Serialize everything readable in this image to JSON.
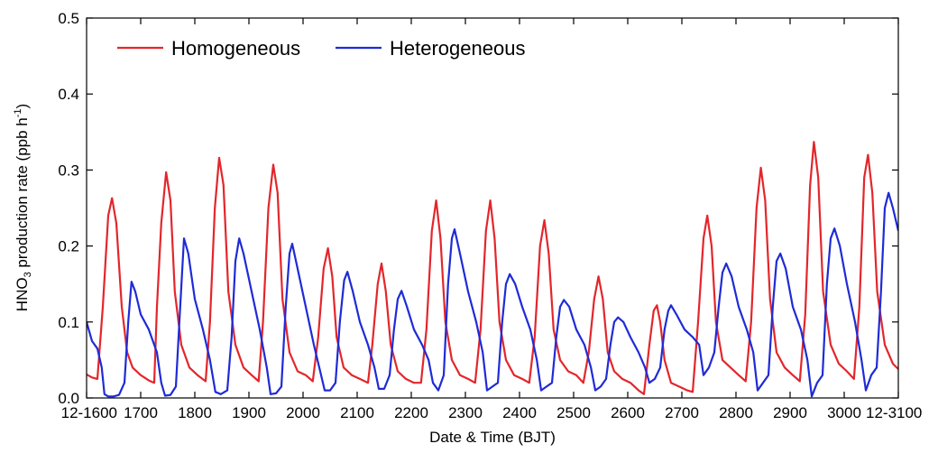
{
  "chart_data": {
    "type": "line",
    "xlabel": "Date & Time (BJT)",
    "ylabel_main": "HNO",
    "ylabel_sub": "3",
    "ylabel_rest": " production rate (ppb h",
    "ylabel_sup": "-1",
    "ylabel_end": ")",
    "ylim": [
      0.0,
      0.5
    ],
    "xlim": [
      1600,
      3100
    ],
    "x_ticks": [
      {
        "value": 1600,
        "label": "12-1600"
      },
      {
        "value": 1700,
        "label": "1700"
      },
      {
        "value": 1800,
        "label": "1800"
      },
      {
        "value": 1900,
        "label": "1900"
      },
      {
        "value": 2000,
        "label": "2000"
      },
      {
        "value": 2100,
        "label": "2100"
      },
      {
        "value": 2200,
        "label": "2200"
      },
      {
        "value": 2300,
        "label": "2300"
      },
      {
        "value": 2400,
        "label": "2400"
      },
      {
        "value": 2500,
        "label": "2500"
      },
      {
        "value": 2600,
        "label": "2600"
      },
      {
        "value": 2700,
        "label": "2700"
      },
      {
        "value": 2800,
        "label": "2800"
      },
      {
        "value": 2900,
        "label": "2900"
      },
      {
        "value": 3000,
        "label": "3000"
      },
      {
        "value": 3100,
        "label": "12-3100"
      }
    ],
    "y_ticks": [
      {
        "value": 0.0,
        "label": "0.0"
      },
      {
        "value": 0.1,
        "label": "0.1"
      },
      {
        "value": 0.2,
        "label": "0.2"
      },
      {
        "value": 0.3,
        "label": "0.3"
      },
      {
        "value": 0.4,
        "label": "0.4"
      },
      {
        "value": 0.5,
        "label": "0.5"
      }
    ],
    "legend_position": "top-left",
    "grid": false,
    "series": [
      {
        "name": "Homogeneous",
        "color": "#e3262b",
        "points": [
          [
            1600,
            0.031
          ],
          [
            1610,
            0.027
          ],
          [
            1620,
            0.025
          ],
          [
            1630,
            0.12
          ],
          [
            1640,
            0.24
          ],
          [
            1647,
            0.263
          ],
          [
            1655,
            0.23
          ],
          [
            1665,
            0.12
          ],
          [
            1675,
            0.06
          ],
          [
            1685,
            0.04
          ],
          [
            1700,
            0.03
          ],
          [
            1715,
            0.023
          ],
          [
            1725,
            0.02
          ],
          [
            1730,
            0.12
          ],
          [
            1738,
            0.23
          ],
          [
            1747,
            0.297
          ],
          [
            1755,
            0.26
          ],
          [
            1763,
            0.14
          ],
          [
            1775,
            0.07
          ],
          [
            1790,
            0.04
          ],
          [
            1805,
            0.03
          ],
          [
            1820,
            0.022
          ],
          [
            1828,
            0.1
          ],
          [
            1837,
            0.25
          ],
          [
            1845,
            0.316
          ],
          [
            1853,
            0.28
          ],
          [
            1862,
            0.14
          ],
          [
            1875,
            0.07
          ],
          [
            1890,
            0.04
          ],
          [
            1905,
            0.03
          ],
          [
            1918,
            0.022
          ],
          [
            1926,
            0.1
          ],
          [
            1936,
            0.25
          ],
          [
            1945,
            0.307
          ],
          [
            1953,
            0.27
          ],
          [
            1962,
            0.13
          ],
          [
            1975,
            0.06
          ],
          [
            1990,
            0.035
          ],
          [
            2005,
            0.03
          ],
          [
            2018,
            0.022
          ],
          [
            2028,
            0.08
          ],
          [
            2038,
            0.17
          ],
          [
            2046,
            0.197
          ],
          [
            2054,
            0.16
          ],
          [
            2062,
            0.08
          ],
          [
            2075,
            0.04
          ],
          [
            2090,
            0.03
          ],
          [
            2105,
            0.025
          ],
          [
            2120,
            0.02
          ],
          [
            2128,
            0.07
          ],
          [
            2138,
            0.15
          ],
          [
            2145,
            0.177
          ],
          [
            2153,
            0.14
          ],
          [
            2162,
            0.07
          ],
          [
            2175,
            0.035
          ],
          [
            2190,
            0.025
          ],
          [
            2205,
            0.02
          ],
          [
            2218,
            0.02
          ],
          [
            2228,
            0.09
          ],
          [
            2238,
            0.22
          ],
          [
            2246,
            0.26
          ],
          [
            2254,
            0.21
          ],
          [
            2263,
            0.1
          ],
          [
            2275,
            0.05
          ],
          [
            2290,
            0.03
          ],
          [
            2305,
            0.025
          ],
          [
            2318,
            0.02
          ],
          [
            2328,
            0.09
          ],
          [
            2338,
            0.22
          ],
          [
            2346,
            0.26
          ],
          [
            2354,
            0.21
          ],
          [
            2363,
            0.1
          ],
          [
            2375,
            0.05
          ],
          [
            2390,
            0.03
          ],
          [
            2405,
            0.025
          ],
          [
            2418,
            0.02
          ],
          [
            2428,
            0.08
          ],
          [
            2438,
            0.2
          ],
          [
            2446,
            0.234
          ],
          [
            2454,
            0.19
          ],
          [
            2463,
            0.09
          ],
          [
            2475,
            0.05
          ],
          [
            2490,
            0.035
          ],
          [
            2505,
            0.03
          ],
          [
            2518,
            0.02
          ],
          [
            2528,
            0.06
          ],
          [
            2538,
            0.13
          ],
          [
            2546,
            0.16
          ],
          [
            2554,
            0.13
          ],
          [
            2563,
            0.06
          ],
          [
            2575,
            0.035
          ],
          [
            2590,
            0.025
          ],
          [
            2605,
            0.02
          ],
          [
            2620,
            0.01
          ],
          [
            2630,
            0.005
          ],
          [
            2640,
            0.07
          ],
          [
            2648,
            0.115
          ],
          [
            2654,
            0.122
          ],
          [
            2660,
            0.1
          ],
          [
            2668,
            0.05
          ],
          [
            2680,
            0.02
          ],
          [
            2695,
            0.015
          ],
          [
            2710,
            0.01
          ],
          [
            2720,
            0.008
          ],
          [
            2730,
            0.1
          ],
          [
            2740,
            0.21
          ],
          [
            2747,
            0.24
          ],
          [
            2755,
            0.2
          ],
          [
            2763,
            0.1
          ],
          [
            2775,
            0.05
          ],
          [
            2790,
            0.04
          ],
          [
            2805,
            0.03
          ],
          [
            2818,
            0.022
          ],
          [
            2828,
            0.1
          ],
          [
            2838,
            0.25
          ],
          [
            2846,
            0.303
          ],
          [
            2854,
            0.26
          ],
          [
            2863,
            0.13
          ],
          [
            2875,
            0.06
          ],
          [
            2890,
            0.04
          ],
          [
            2905,
            0.03
          ],
          [
            2918,
            0.022
          ],
          [
            2928,
            0.11
          ],
          [
            2937,
            0.28
          ],
          [
            2944,
            0.337
          ],
          [
            2952,
            0.29
          ],
          [
            2961,
            0.14
          ],
          [
            2975,
            0.07
          ],
          [
            2990,
            0.045
          ],
          [
            3005,
            0.035
          ],
          [
            3018,
            0.025
          ],
          [
            3028,
            0.12
          ],
          [
            3037,
            0.29
          ],
          [
            3044,
            0.32
          ],
          [
            3052,
            0.27
          ],
          [
            3061,
            0.14
          ],
          [
            3075,
            0.07
          ],
          [
            3090,
            0.045
          ],
          [
            3100,
            0.038
          ]
        ]
      },
      {
        "name": "Heterogeneous",
        "color": "#1f2bd6",
        "points": [
          [
            1600,
            0.1
          ],
          [
            1610,
            0.075
          ],
          [
            1620,
            0.065
          ],
          [
            1628,
            0.04
          ],
          [
            1633,
            0.005
          ],
          [
            1640,
            0.002
          ],
          [
            1650,
            0.002
          ],
          [
            1660,
            0.004
          ],
          [
            1670,
            0.02
          ],
          [
            1677,
            0.1
          ],
          [
            1683,
            0.153
          ],
          [
            1690,
            0.14
          ],
          [
            1700,
            0.11
          ],
          [
            1715,
            0.09
          ],
          [
            1730,
            0.06
          ],
          [
            1738,
            0.02
          ],
          [
            1745,
            0.003
          ],
          [
            1755,
            0.004
          ],
          [
            1765,
            0.015
          ],
          [
            1773,
            0.12
          ],
          [
            1780,
            0.21
          ],
          [
            1788,
            0.19
          ],
          [
            1800,
            0.13
          ],
          [
            1815,
            0.09
          ],
          [
            1828,
            0.05
          ],
          [
            1838,
            0.008
          ],
          [
            1848,
            0.005
          ],
          [
            1860,
            0.01
          ],
          [
            1868,
            0.08
          ],
          [
            1875,
            0.18
          ],
          [
            1882,
            0.21
          ],
          [
            1890,
            0.19
          ],
          [
            1905,
            0.14
          ],
          [
            1920,
            0.09
          ],
          [
            1933,
            0.04
          ],
          [
            1940,
            0.005
          ],
          [
            1950,
            0.006
          ],
          [
            1960,
            0.015
          ],
          [
            1968,
            0.12
          ],
          [
            1975,
            0.19
          ],
          [
            1980,
            0.203
          ],
          [
            1990,
            0.17
          ],
          [
            2005,
            0.12
          ],
          [
            2020,
            0.07
          ],
          [
            2030,
            0.04
          ],
          [
            2040,
            0.01
          ],
          [
            2050,
            0.01
          ],
          [
            2060,
            0.02
          ],
          [
            2068,
            0.1
          ],
          [
            2076,
            0.155
          ],
          [
            2082,
            0.166
          ],
          [
            2092,
            0.14
          ],
          [
            2105,
            0.1
          ],
          [
            2120,
            0.07
          ],
          [
            2132,
            0.04
          ],
          [
            2140,
            0.012
          ],
          [
            2150,
            0.012
          ],
          [
            2160,
            0.03
          ],
          [
            2168,
            0.09
          ],
          [
            2175,
            0.13
          ],
          [
            2182,
            0.141
          ],
          [
            2192,
            0.12
          ],
          [
            2205,
            0.09
          ],
          [
            2220,
            0.07
          ],
          [
            2232,
            0.05
          ],
          [
            2240,
            0.02
          ],
          [
            2250,
            0.01
          ],
          [
            2260,
            0.03
          ],
          [
            2268,
            0.15
          ],
          [
            2275,
            0.21
          ],
          [
            2280,
            0.222
          ],
          [
            2290,
            0.19
          ],
          [
            2305,
            0.14
          ],
          [
            2320,
            0.1
          ],
          [
            2332,
            0.06
          ],
          [
            2340,
            0.01
          ],
          [
            2350,
            0.015
          ],
          [
            2360,
            0.02
          ],
          [
            2368,
            0.1
          ],
          [
            2375,
            0.15
          ],
          [
            2382,
            0.163
          ],
          [
            2392,
            0.15
          ],
          [
            2405,
            0.12
          ],
          [
            2420,
            0.09
          ],
          [
            2432,
            0.05
          ],
          [
            2440,
            0.01
          ],
          [
            2450,
            0.015
          ],
          [
            2460,
            0.02
          ],
          [
            2468,
            0.08
          ],
          [
            2475,
            0.12
          ],
          [
            2482,
            0.129
          ],
          [
            2492,
            0.12
          ],
          [
            2505,
            0.09
          ],
          [
            2520,
            0.07
          ],
          [
            2532,
            0.04
          ],
          [
            2540,
            0.01
          ],
          [
            2550,
            0.015
          ],
          [
            2560,
            0.025
          ],
          [
            2568,
            0.07
          ],
          [
            2575,
            0.1
          ],
          [
            2582,
            0.106
          ],
          [
            2592,
            0.1
          ],
          [
            2605,
            0.08
          ],
          [
            2620,
            0.06
          ],
          [
            2632,
            0.04
          ],
          [
            2640,
            0.02
          ],
          [
            2650,
            0.025
          ],
          [
            2660,
            0.04
          ],
          [
            2668,
            0.09
          ],
          [
            2675,
            0.115
          ],
          [
            2680,
            0.122
          ],
          [
            2690,
            0.11
          ],
          [
            2705,
            0.09
          ],
          [
            2720,
            0.08
          ],
          [
            2732,
            0.07
          ],
          [
            2740,
            0.03
          ],
          [
            2750,
            0.04
          ],
          [
            2760,
            0.06
          ],
          [
            2768,
            0.12
          ],
          [
            2775,
            0.165
          ],
          [
            2782,
            0.177
          ],
          [
            2792,
            0.16
          ],
          [
            2805,
            0.12
          ],
          [
            2820,
            0.09
          ],
          [
            2832,
            0.06
          ],
          [
            2840,
            0.01
          ],
          [
            2850,
            0.02
          ],
          [
            2860,
            0.03
          ],
          [
            2868,
            0.12
          ],
          [
            2875,
            0.18
          ],
          [
            2882,
            0.19
          ],
          [
            2892,
            0.17
          ],
          [
            2905,
            0.12
          ],
          [
            2920,
            0.09
          ],
          [
            2932,
            0.05
          ],
          [
            2940,
            0.002
          ],
          [
            2950,
            0.02
          ],
          [
            2960,
            0.03
          ],
          [
            2968,
            0.15
          ],
          [
            2975,
            0.21
          ],
          [
            2982,
            0.223
          ],
          [
            2992,
            0.2
          ],
          [
            3005,
            0.15
          ],
          [
            3020,
            0.1
          ],
          [
            3032,
            0.05
          ],
          [
            3040,
            0.01
          ],
          [
            3050,
            0.03
          ],
          [
            3060,
            0.04
          ],
          [
            3068,
            0.14
          ],
          [
            3075,
            0.25
          ],
          [
            3082,
            0.27
          ],
          [
            3090,
            0.25
          ],
          [
            3100,
            0.22
          ]
        ]
      }
    ]
  }
}
